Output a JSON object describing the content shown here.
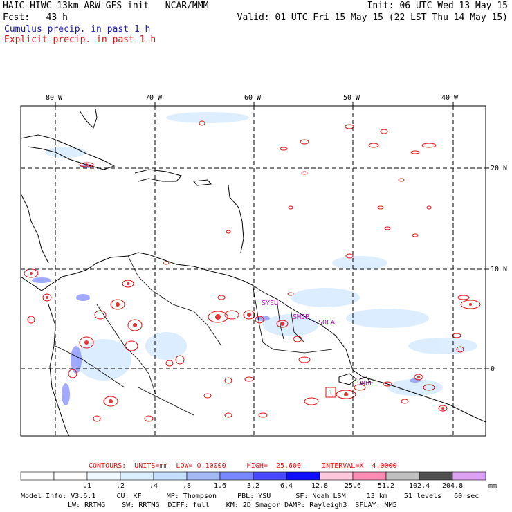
{
  "header": {
    "title_left": "HAIC-HIWC 13km ARW-GFS init   NCAR/MMM",
    "init": "Init: 06 UTC Wed 13 May 15",
    "fcst": "Fcst:   43 h",
    "valid": "Valid: 01 UTC Fri 15 May 15 (22 LST Thu 14 May 15)",
    "legend_cumulus": "Cumulus precip. in past 1 h",
    "legend_explicit": "Explicit precip. in past 1 h"
  },
  "colors": {
    "cumulus": "#1a1aa0",
    "explicit": "#e01010",
    "station_label": "#b010c0"
  },
  "map": {
    "lon_labels": [
      "80 W",
      "70 W",
      "60 W",
      "50 W",
      "40 W"
    ],
    "lat_labels": [
      "20 N",
      "10 N",
      "0"
    ],
    "stations": [
      {
        "label": "SYEU"
      },
      {
        "label": "SMJP"
      },
      {
        "label": "SOCA"
      },
      {
        "label": "SBBE"
      }
    ],
    "marker_label": "1"
  },
  "footer": {
    "contours": "CONTOURS:  UNITS=mm  LOW= 0.10000     HIGH=  25.600     INTERVAL=X  4.0000",
    "colorbar": {
      "labels": [
        ".1",
        ".2",
        ".4",
        ".8",
        "1.6",
        "3.2",
        "6.4",
        "12.8",
        "25.6",
        "51.2",
        "102.4",
        "204.8"
      ],
      "units": "mm",
      "colors": [
        "#ffffff",
        "#ffffff",
        "#f0f8ff",
        "#dbeeff",
        "#c6e0ff",
        "#a4b8ff",
        "#7a88ff",
        "#4a4aff",
        "#1010ff",
        "#ffc8dc",
        "#ff8cb4",
        "#c0c0c0",
        "#505050",
        "#dca0f8"
      ]
    },
    "model_line1": "Model Info: V3.6.1     CU: KF      MP: Thompson     PBL: YSU      SF: Noah LSM     13 km    51 levels   60 sec",
    "model_line2": "LW: RRTMG    SW: RRTMG  DIFF: full    KM: 2D Smagor DAMP: Rayleigh3  SFLAY: MM5"
  }
}
